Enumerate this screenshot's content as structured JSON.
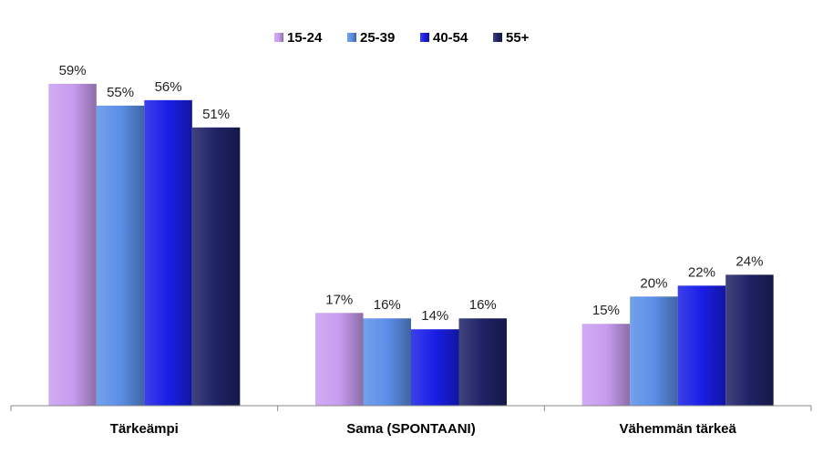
{
  "chart_data": {
    "type": "bar",
    "categories": [
      "Tärkeämpi",
      "Sama (SPONTAANI)",
      "Vähemmän tärkeä"
    ],
    "series": [
      {
        "name": "15-24",
        "values": [
          59,
          17,
          15
        ],
        "color": "#c89cf0"
      },
      {
        "name": "25-39",
        "values": [
          55,
          16,
          20
        ],
        "color": "#5b8fe8"
      },
      {
        "name": "40-54",
        "values": [
          56,
          14,
          22
        ],
        "color": "#1a1ee6"
      },
      {
        "name": "55+",
        "values": [
          51,
          16,
          24
        ],
        "color": "#1f2266"
      }
    ],
    "value_suffix": "%",
    "ylim": [
      0,
      65
    ],
    "legend": "top-center",
    "grid": false
  }
}
